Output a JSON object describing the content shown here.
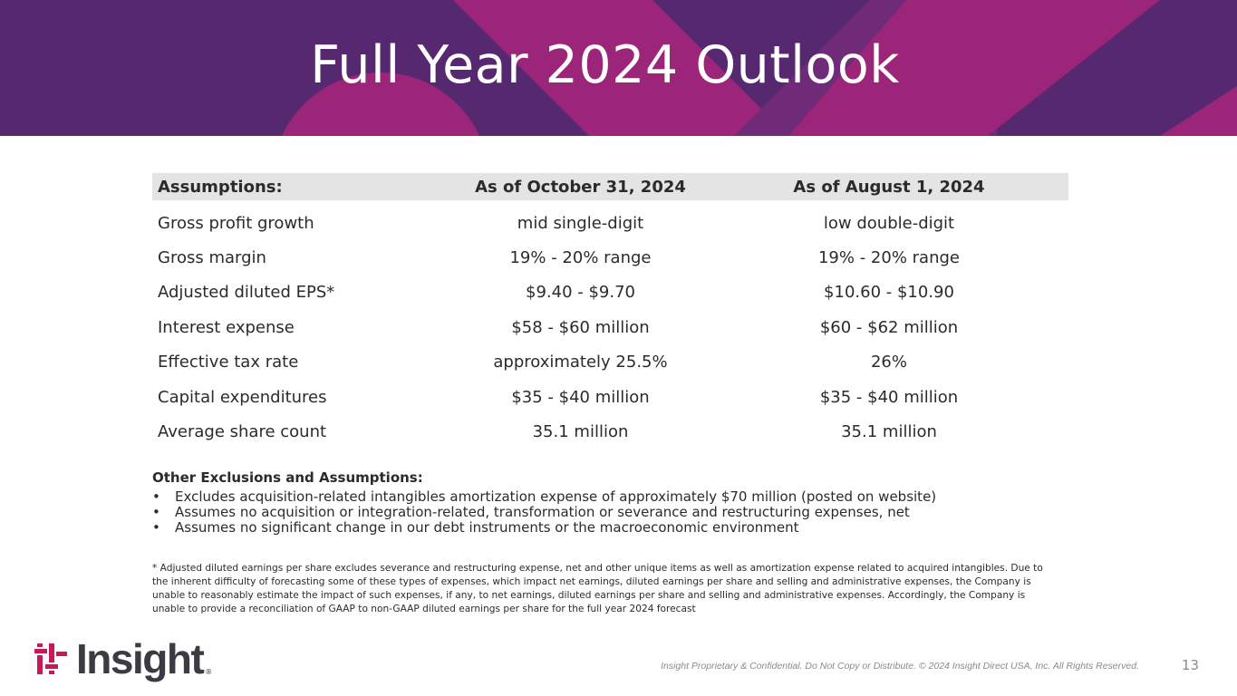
{
  "title": "Full Year 2024 Outlook",
  "colors": {
    "banner_dark": "#55286f",
    "banner_magenta": "#9b2578",
    "logo_accent": "#c7195a"
  },
  "table": {
    "headers": [
      "Assumptions:",
      "As of October 31, 2024",
      "As of August 1, 2024"
    ],
    "rows": [
      [
        "Gross profit growth",
        "mid single-digit",
        "low double-digit"
      ],
      [
        "Gross margin",
        "19% - 20% range",
        "19% - 20% range"
      ],
      [
        "Adjusted diluted EPS*",
        "$9.40 - $9.70",
        "$10.60 - $10.90"
      ],
      [
        "Interest expense",
        "$58 - $60 million",
        "$60 - $62 million"
      ],
      [
        "Effective tax rate",
        "approximately 25.5%",
        "26%"
      ],
      [
        "Capital expenditures",
        "$35 - $40 million",
        "$35 - $40 million"
      ],
      [
        "Average share count",
        "35.1 million",
        "35.1 million"
      ]
    ]
  },
  "other": {
    "heading": "Other Exclusions and Assumptions:",
    "bullet": "•",
    "items": [
      "Excludes acquisition-related intangibles amortization expense of approximately $70 million (posted on website)",
      "Assumes no acquisition or integration-related, transformation or severance and restructuring expenses, net",
      "Assumes no significant change in our debt instruments or the macroeconomic environment"
    ]
  },
  "footnote": "* Adjusted diluted earnings per share excludes severance and restructuring expense, net and other unique items as well as amortization expense related to acquired intangibles. Due to the inherent difficulty of forecasting some of these types of expenses, which impact net earnings, diluted earnings per share and selling and administrative expenses, the Company is unable to reasonably estimate the impact of such expenses, if any, to net earnings, diluted earnings per share and selling and administrative expenses. Accordingly, the Company is unable to provide a reconciliation of GAAP to non-GAAP diluted earnings per share for the full year 2024 forecast",
  "logo": {
    "text": "Insight",
    "mark": "®",
    "icon": "insight-logo-icon"
  },
  "confidential": "Insight Proprietary & Confidential. Do Not Copy or Distribute. © 2024 Insight Direct USA, Inc. All Rights Reserved.",
  "page_number": "13"
}
